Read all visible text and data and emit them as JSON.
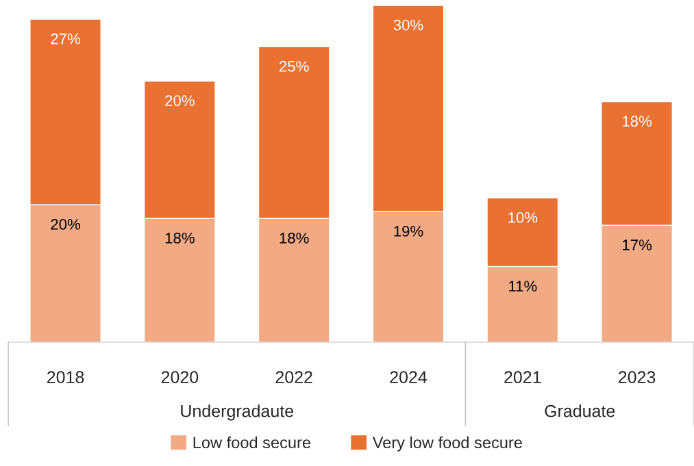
{
  "chart_data": {
    "type": "bar",
    "stacked": true,
    "categories": [
      "2018",
      "2020",
      "2022",
      "2024",
      "2021",
      "2023"
    ],
    "series": [
      {
        "name": "Low food secure",
        "color": "#f2aa84",
        "values": [
          20,
          18,
          18,
          19,
          11,
          17
        ],
        "value_labels": [
          "20%",
          "18%",
          "18%",
          "19%",
          "11%",
          "17%"
        ]
      },
      {
        "name": "Very low food secure",
        "color": "#e97132",
        "values": [
          27,
          20,
          25,
          30,
          10,
          18
        ],
        "value_labels": [
          "27%",
          "20%",
          "25%",
          "30%",
          "10%",
          "18%"
        ]
      }
    ],
    "annotations": [
      "Undergradaute",
      "Graduate"
    ],
    "legend": "bottom",
    "grid": false
  }
}
